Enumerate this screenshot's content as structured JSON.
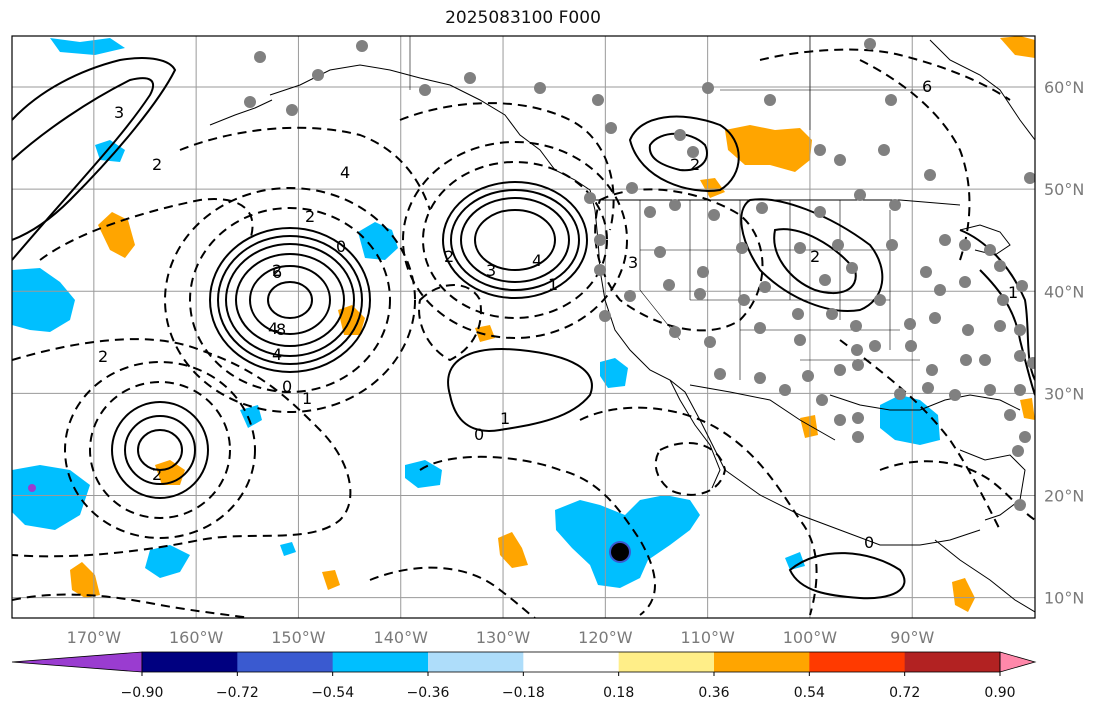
{
  "title": "2025083100 F000",
  "map": {
    "region": "Northeast Pacific / Western North America",
    "lon_range": [
      -178,
      -78
    ],
    "lat_range": [
      8,
      65
    ],
    "lon_labels": [
      "170°W",
      "160°W",
      "150°W",
      "140°W",
      "130°W",
      "120°W",
      "110°W",
      "100°W",
      "90°W"
    ],
    "lon_values": [
      -170,
      -160,
      -150,
      -140,
      -130,
      -120,
      -110,
      -100,
      -90
    ],
    "lat_labels": [
      "10°N",
      "20°N",
      "30°N",
      "40°N",
      "50°N",
      "60°N"
    ],
    "lat_values": [
      10,
      20,
      30,
      40,
      50,
      60
    ]
  },
  "colorbar": {
    "colors": [
      "#9a3cd0",
      "#000080",
      "#3a5ad0",
      "#00bfff",
      "#aeddfa",
      "#ffffff",
      "#ffee88",
      "#ffa500",
      "#ff3a00",
      "#b22222",
      "#ff88aa"
    ],
    "ticks": [
      "−0.90",
      "−0.72",
      "−0.54",
      "−0.36",
      "−0.18",
      "0.18",
      "0.36",
      "0.54",
      "0.72",
      "0.90"
    ],
    "extend": "both"
  },
  "contour_labels": [
    "2",
    "4",
    "6",
    "8",
    "4",
    "0",
    "1",
    "2",
    "0",
    "3",
    "4",
    "1",
    "2",
    "0",
    "1",
    "2",
    "3",
    "2",
    "1",
    "2",
    "0",
    "2",
    "6",
    "4",
    "2",
    "3"
  ],
  "fill_colors": {
    "blue": "#00bfff",
    "orange": "#ffa500",
    "purple": "#7a4fd0"
  }
}
